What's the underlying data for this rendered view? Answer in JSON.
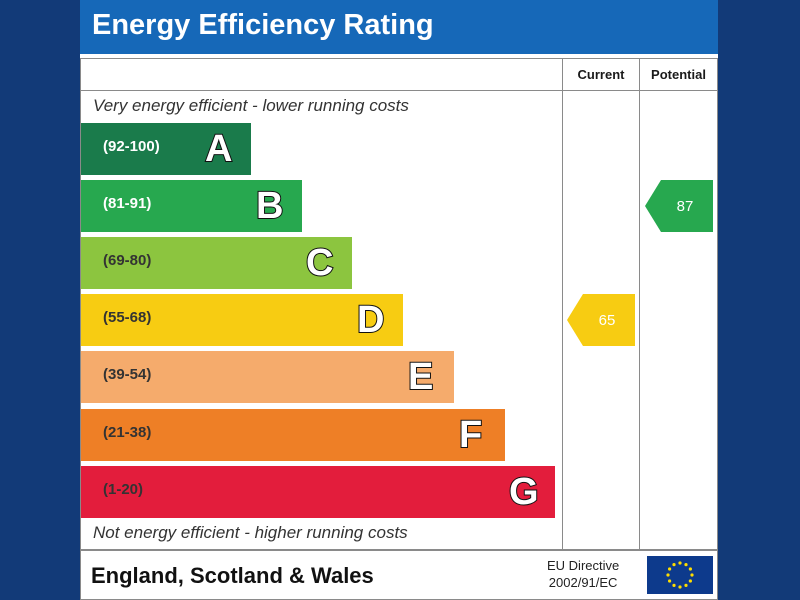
{
  "header": {
    "title": "Energy Efficiency Rating"
  },
  "columns": {
    "current": "Current",
    "potential": "Potential"
  },
  "captions": {
    "top": "Very energy efficient - lower running costs",
    "bottom": "Not energy efficient - higher running costs"
  },
  "chart_data": {
    "type": "bar",
    "title": "Energy Efficiency Rating",
    "categories": [
      "A",
      "B",
      "C",
      "D",
      "E",
      "F",
      "G"
    ],
    "bands": [
      {
        "letter": "A",
        "range": "(92-100)",
        "min": 92,
        "max": 100,
        "color": "#1a7b4b",
        "text_color": "#ffffff"
      },
      {
        "letter": "B",
        "range": "(81-91)",
        "min": 81,
        "max": 91,
        "color": "#27a84f",
        "text_color": "#ffffff"
      },
      {
        "letter": "C",
        "range": "(69-80)",
        "min": 69,
        "max": 80,
        "color": "#8cc53f",
        "text_color": "#333333"
      },
      {
        "letter": "D",
        "range": "(55-68)",
        "min": 55,
        "max": 68,
        "color": "#f7cc12",
        "text_color": "#333333"
      },
      {
        "letter": "E",
        "range": "(39-54)",
        "min": 39,
        "max": 54,
        "color": "#f5ab6c",
        "text_color": "#333333"
      },
      {
        "letter": "F",
        "range": "(21-38)",
        "min": 21,
        "max": 38,
        "color": "#ee7f26",
        "text_color": "#333333"
      },
      {
        "letter": "G",
        "range": "(1-20)",
        "min": 1,
        "max": 20,
        "color": "#e31d3c",
        "text_color": "#333333"
      }
    ],
    "current": {
      "value": 65,
      "band": "D",
      "color": "#f7cc12"
    },
    "potential": {
      "value": 87,
      "band": "B",
      "color": "#27a84f"
    }
  },
  "footer": {
    "region": "England, Scotland & Wales",
    "directive_line1": "EU Directive",
    "directive_line2": "2002/91/EC",
    "flag_color": "#0d3a8c",
    "star_color": "#ffdd00"
  }
}
